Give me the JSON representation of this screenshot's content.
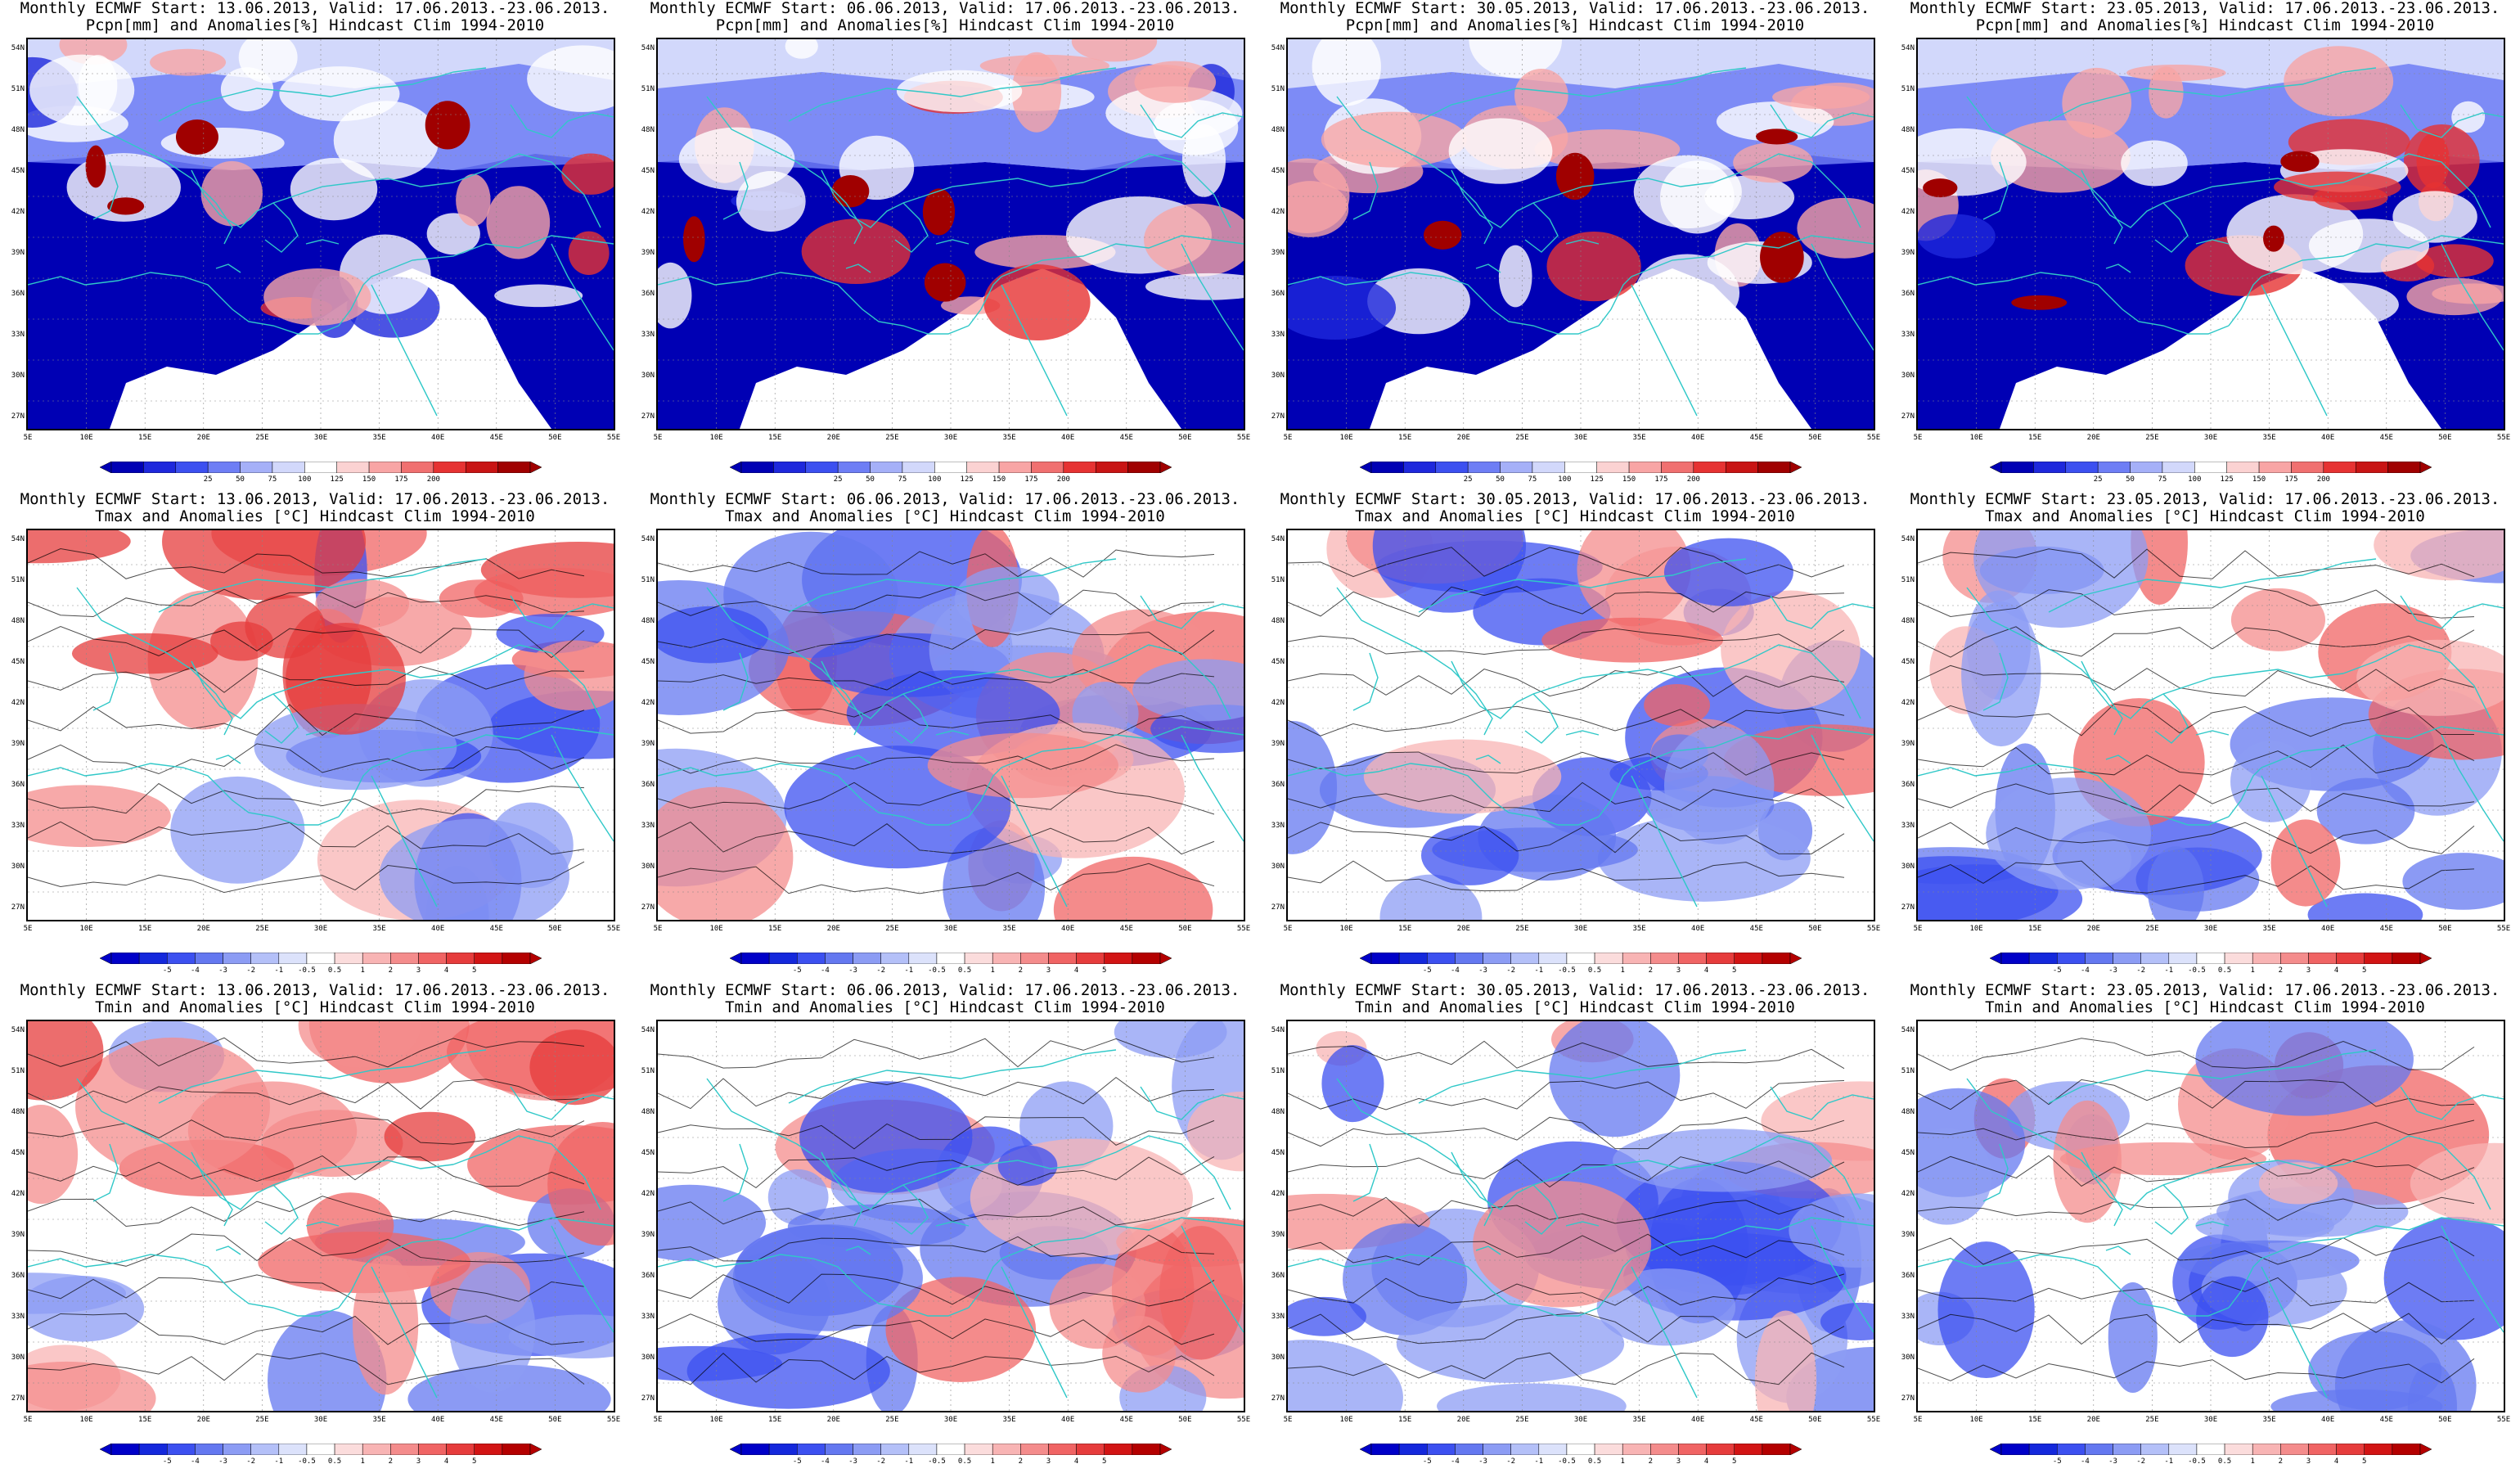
{
  "panels": [
    {
      "row": 0,
      "col": 0,
      "title1": "Monthly ECMWF Start: 13.06.2013, Valid: 17.06.2013.-23.06.2013.",
      "title2": "Pcpn[mm] and Anomalies[%] Hindcast Clim 1994-2010"
    },
    {
      "row": 0,
      "col": 1,
      "title1": "Monthly ECMWF Start: 06.06.2013, Valid: 17.06.2013.-23.06.2013.",
      "title2": "Pcpn[mm] and Anomalies[%] Hindcast Clim 1994-2010"
    },
    {
      "row": 0,
      "col": 2,
      "title1": "Monthly ECMWF Start: 30.05.2013, Valid: 17.06.2013.-23.06.2013.",
      "title2": "Pcpn[mm] and Anomalies[%] Hindcast Clim 1994-2010"
    },
    {
      "row": 0,
      "col": 3,
      "title1": "Monthly ECMWF Start: 23.05.2013, Valid: 17.06.2013.-23.06.2013.",
      "title2": "Pcpn[mm] and Anomalies[%] Hindcast Clim 1994-2010"
    },
    {
      "row": 1,
      "col": 0,
      "title1": "Monthly ECMWF Start: 13.06.2013, Valid: 17.06.2013.-23.06.2013.",
      "title2": "Tmax and Anomalies [°C] Hindcast Clim 1994-2010"
    },
    {
      "row": 1,
      "col": 1,
      "title1": "Monthly ECMWF Start: 06.06.2013, Valid: 17.06.2013.-23.06.2013.",
      "title2": "Tmax and Anomalies [°C] Hindcast Clim 1994-2010"
    },
    {
      "row": 1,
      "col": 2,
      "title1": "Monthly ECMWF Start: 30.05.2013, Valid: 17.06.2013.-23.06.2013.",
      "title2": "Tmax and Anomalies [°C] Hindcast Clim 1994-2010"
    },
    {
      "row": 1,
      "col": 3,
      "title1": "Monthly ECMWF Start: 23.05.2013, Valid: 17.06.2013.-23.06.2013.",
      "title2": "Tmax and Anomalies [°C] Hindcast Clim 1994-2010"
    },
    {
      "row": 2,
      "col": 0,
      "title1": "Monthly ECMWF Start: 13.06.2013, Valid: 17.06.2013.-23.06.2013.",
      "title2": "Tmin and Anomalies [°C] Hindcast Clim 1994-2010"
    },
    {
      "row": 2,
      "col": 1,
      "title1": "Monthly ECMWF Start: 06.06.2013, Valid: 17.06.2013.-23.06.2013.",
      "title2": "Tmin and Anomalies [°C] Hindcast Clim 1994-2010"
    },
    {
      "row": 2,
      "col": 2,
      "title1": "Monthly ECMWF Start: 30.05.2013, Valid: 17.06.2013.-23.06.2013.",
      "title2": "Tmin and Anomalies [°C] Hindcast Clim 1994-2010"
    },
    {
      "row": 2,
      "col": 3,
      "title1": "Monthly ECMWF Start: 23.05.2013, Valid: 17.06.2013.-23.06.2013.",
      "title2": "Tmin and Anomalies [°C] Hindcast Clim 1994-2010"
    }
  ],
  "lat_labels": [
    "54N",
    "51N",
    "48N",
    "45N",
    "42N",
    "39N",
    "36N",
    "33N",
    "30N",
    "27N"
  ],
  "lon_labels": [
    "5E",
    "10E",
    "15E",
    "20E",
    "25E",
    "30E",
    "35E",
    "40E",
    "45E",
    "50E",
    "55E"
  ],
  "pcpn_colorbar": {
    "labels": [
      "25",
      "50",
      "75",
      "100",
      "125",
      "150",
      "175",
      "200"
    ],
    "colors": [
      "#0000b4",
      "#1e28dc",
      "#3c50f0",
      "#6e7ef5",
      "#a5b0f8",
      "#d2d8fb",
      "#ffffff",
      "#fbd2d2",
      "#f8a5a5",
      "#f07070",
      "#e63232",
      "#c81414",
      "#a00000"
    ]
  },
  "temp_colorbar": {
    "labels": [
      "-5",
      "-4",
      "-3",
      "-2",
      "-1",
      "-0.5",
      "0.5",
      "1",
      "2",
      "3",
      "4",
      "5"
    ],
    "colors": [
      "#0000c8",
      "#1428dc",
      "#3c50f0",
      "#6478f0",
      "#8c9cf4",
      "#b4c0f8",
      "#dce2fb",
      "#ffffff",
      "#fbdcdc",
      "#f8b4b4",
      "#f48c8c",
      "#f06464",
      "#e63c3c",
      "#d21414",
      "#b40000"
    ]
  },
  "colors": {
    "coast": "#30c8c8",
    "contour": "#000000",
    "deep_blue": "#0a14b4",
    "deep_red": "#a00000"
  }
}
